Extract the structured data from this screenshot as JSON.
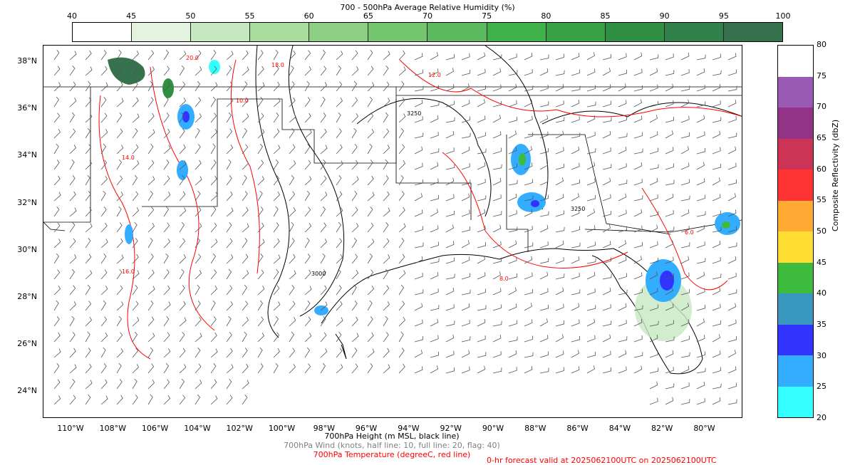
{
  "rh_colorbar": {
    "title": "700 - 500hPa Average Relative Humidity (%)",
    "ticks": [
      "40",
      "45",
      "50",
      "55",
      "60",
      "65",
      "70",
      "75",
      "80",
      "85",
      "90",
      "95",
      "100"
    ],
    "colors": [
      "#ffffff",
      "#e3f3df",
      "#c6e8c0",
      "#a9dc9d",
      "#8dd084",
      "#74c66e",
      "#5cb95d",
      "#3fb04a",
      "#38a144",
      "#2f8f42",
      "#32804a",
      "#36724d"
    ]
  },
  "map": {
    "lat_labels": [
      "38°N",
      "36°N",
      "34°N",
      "32°N",
      "30°N",
      "28°N",
      "26°N",
      "24°N"
    ],
    "lon_labels": [
      "110°W",
      "108°W",
      "106°W",
      "104°W",
      "102°W",
      "100°W",
      "98°W",
      "96°W",
      "94°W",
      "92°W",
      "90°W",
      "88°W",
      "86°W",
      "84°W",
      "82°W",
      "80°W"
    ],
    "height_contour_labels": [
      "3000",
      "3250"
    ],
    "temp_contour_labels": [
      "6.0",
      "8.0",
      "10.0",
      "12.0",
      "14.0",
      "16.0",
      "18.0",
      "20.0"
    ],
    "contour_colors": {
      "height": "#000000",
      "temperature": "#ff0000",
      "barbs": "#555555"
    }
  },
  "refl_colorbar": {
    "label": "Composite Reflectivity (dbZ)",
    "ticks": [
      "20",
      "25",
      "30",
      "35",
      "40",
      "45",
      "50",
      "55",
      "60",
      "65",
      "70",
      "75",
      "80"
    ],
    "colors": [
      "#33ffff",
      "#33adff",
      "#3333ff",
      "#3a98c0",
      "#3cbb3c",
      "#ffdd33",
      "#ffaa33",
      "#ff3333",
      "#cc3355",
      "#933388",
      "#9a5ab4",
      "#ffffff"
    ]
  },
  "captions": {
    "height": "700hPa Height (m MSL, black line)",
    "wind": "700hPa Wind (knots, half line: 10, full line: 20, flag: 40)",
    "temperature": "700hPa Temperature (degreeC, red line)",
    "valid": "0-hr forecast valid at 2025062100UTC on 2025062100UTC"
  }
}
